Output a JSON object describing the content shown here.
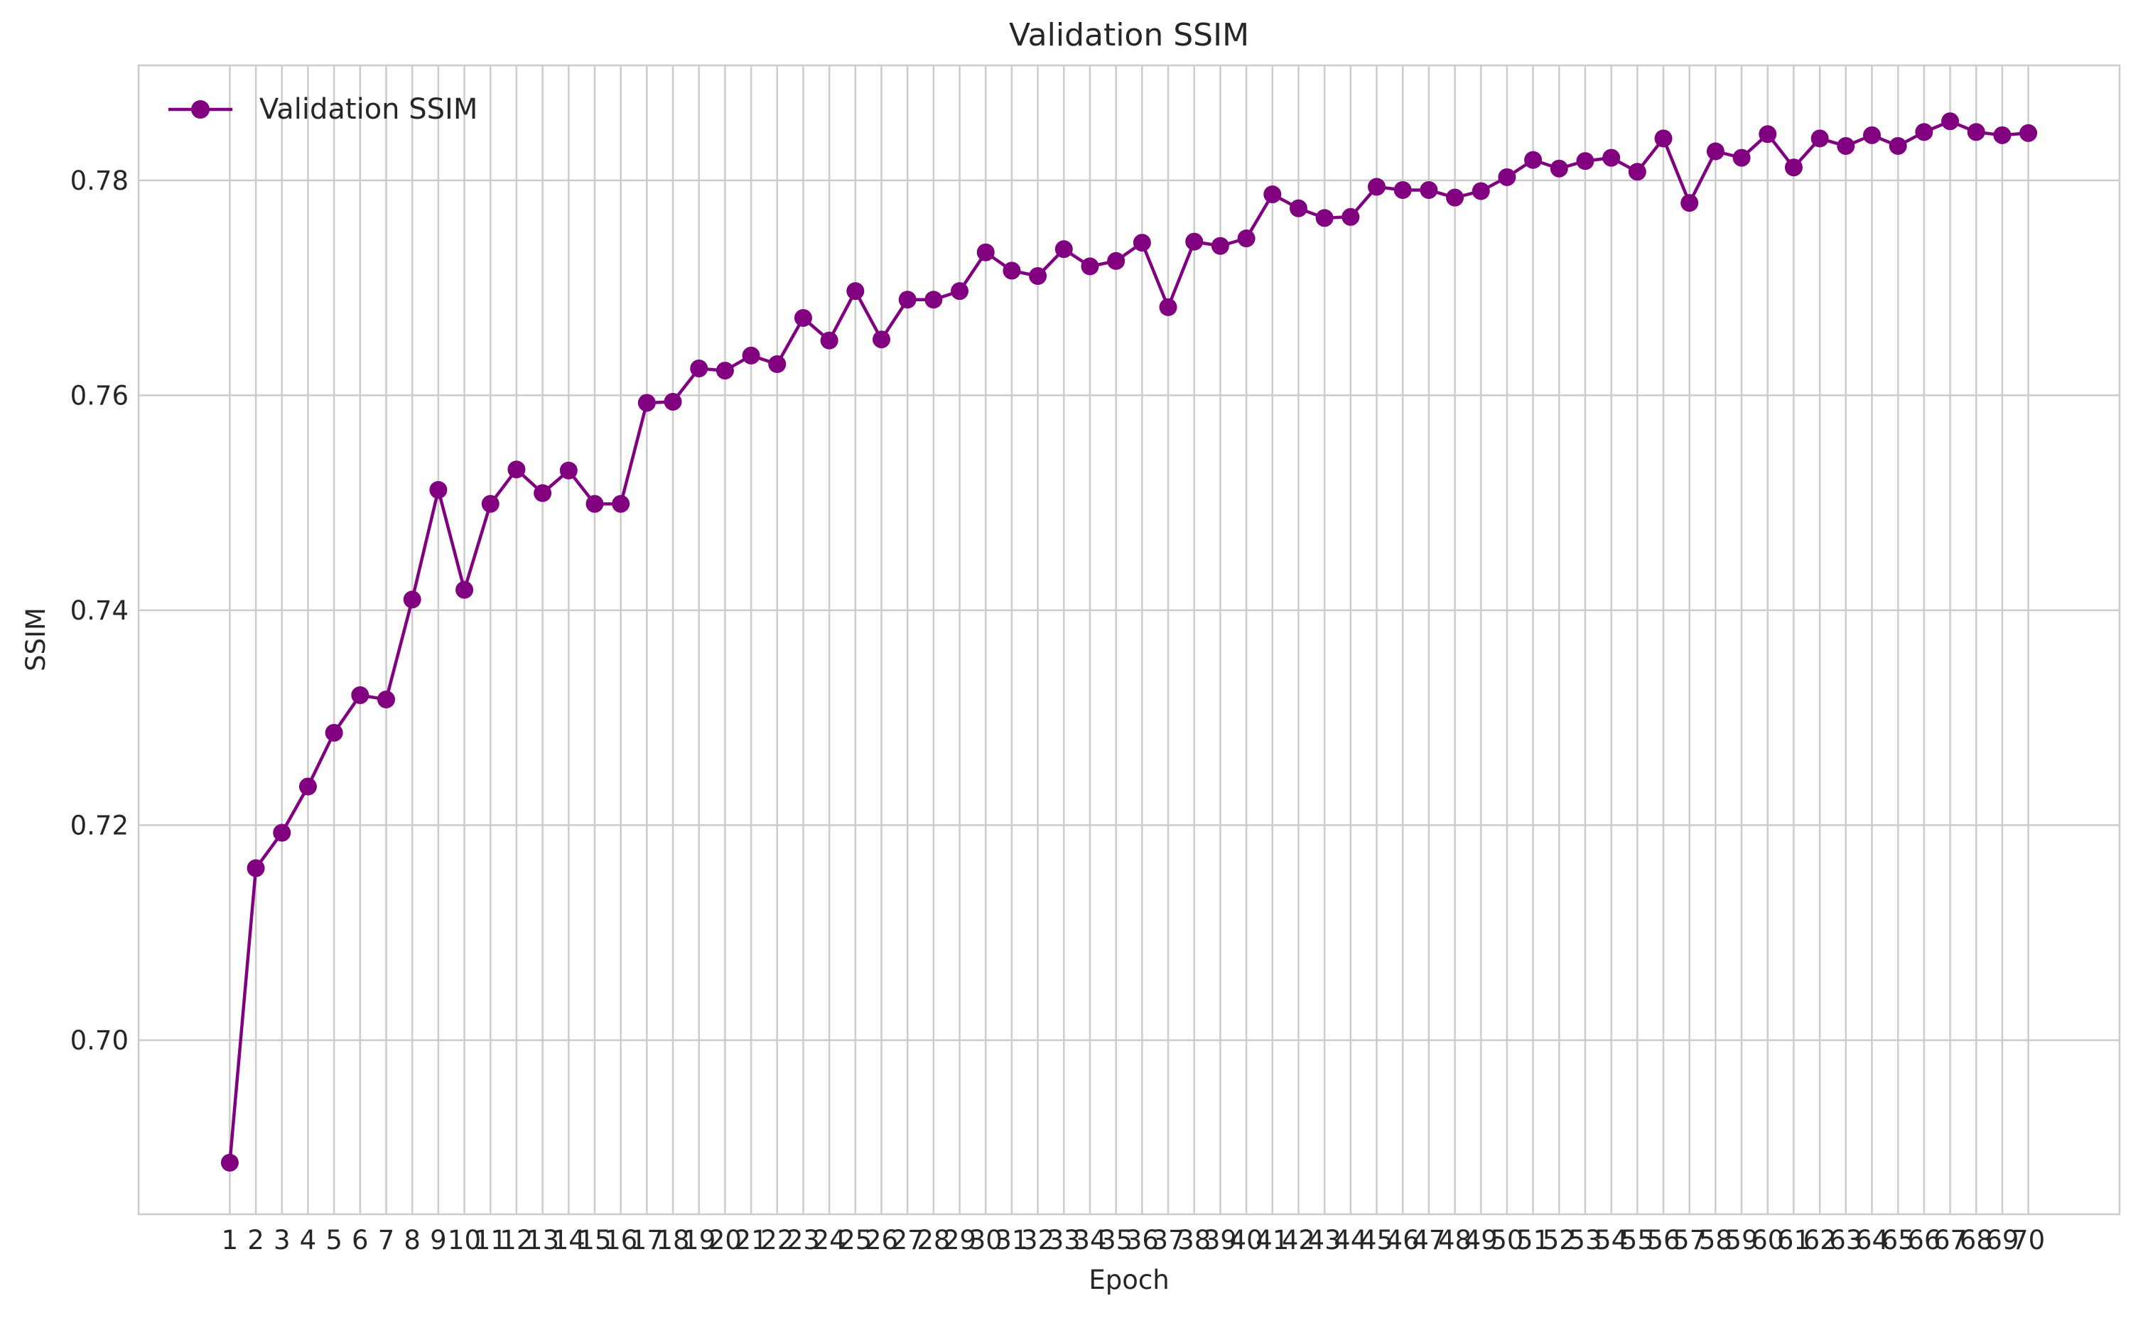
{
  "chart_data": {
    "type": "line",
    "title": "Validation SSIM",
    "xlabel": "Epoch",
    "ylabel": "SSIM",
    "legend": {
      "position": "top-left"
    },
    "grid": true,
    "xlim": [
      -2.5,
      73.5
    ],
    "ylim": [
      0.6838,
      0.7907
    ],
    "yticks": [
      0.7,
      0.72,
      0.74,
      0.76,
      0.78
    ],
    "ytick_labels": [
      "0.70",
      "0.72",
      "0.74",
      "0.76",
      "0.78"
    ],
    "x": [
      1,
      2,
      3,
      4,
      5,
      6,
      7,
      8,
      9,
      10,
      11,
      12,
      13,
      14,
      15,
      16,
      17,
      18,
      19,
      20,
      21,
      22,
      23,
      24,
      25,
      26,
      27,
      28,
      29,
      30,
      31,
      32,
      33,
      34,
      35,
      36,
      37,
      38,
      39,
      40,
      41,
      42,
      43,
      44,
      45,
      46,
      47,
      48,
      49,
      50,
      51,
      52,
      53,
      54,
      55,
      56,
      57,
      58,
      59,
      60,
      61,
      62,
      63,
      64,
      65,
      66,
      67,
      68,
      69,
      70
    ],
    "series": [
      {
        "name": "Validation SSIM",
        "color": "#800080",
        "marker": "circle",
        "values": [
          0.6886,
          0.716,
          0.7193,
          0.7236,
          0.7286,
          0.7321,
          0.7317,
          0.741,
          0.7512,
          0.7419,
          0.7499,
          0.7531,
          0.7509,
          0.753,
          0.7499,
          0.7499,
          0.7593,
          0.7594,
          0.7625,
          0.7623,
          0.7637,
          0.7629,
          0.7672,
          0.7651,
          0.7697,
          0.7652,
          0.7689,
          0.7689,
          0.7697,
          0.7733,
          0.7716,
          0.7711,
          0.7736,
          0.772,
          0.7725,
          0.7742,
          0.7682,
          0.7743,
          0.7739,
          0.7746,
          0.7787,
          0.7774,
          0.7765,
          0.7766,
          0.7794,
          0.7791,
          0.7791,
          0.7784,
          0.779,
          0.7803,
          0.7819,
          0.7811,
          0.7818,
          0.7821,
          0.7808,
          0.7839,
          0.7779,
          0.7827,
          0.7821,
          0.7843,
          0.7812,
          0.7839,
          0.7832,
          0.7842,
          0.7832,
          0.7845,
          0.7855,
          0.7845,
          0.7842,
          0.7844
        ]
      }
    ]
  }
}
